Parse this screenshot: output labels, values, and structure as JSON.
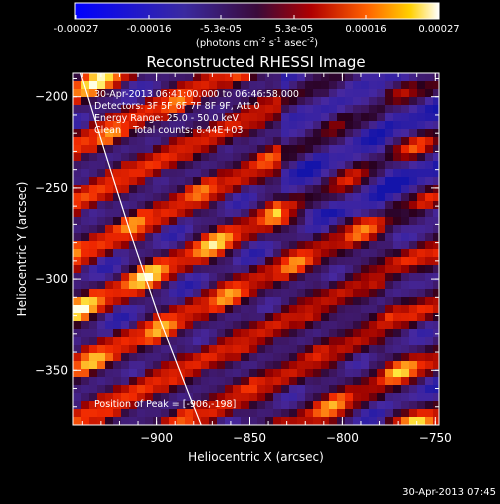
{
  "chart_data": {
    "type": "heatmap",
    "title": "Reconstructed RHESSI Image",
    "xlabel": "Heliocentric X (arcsec)",
    "ylabel": "Heliocentric Y (arcsec)",
    "xlim": [
      -945,
      -748
    ],
    "ylim": [
      -380,
      -187
    ],
    "xticks": [
      -900,
      -850,
      -800,
      -750
    ],
    "yticks": [
      -200,
      -250,
      -300,
      -350
    ],
    "colorbar": {
      "ticks": [
        "-0.00027",
        "-0.00016",
        "-5.3e-05",
        "5.3e-05",
        "0.00016",
        "0.00027"
      ],
      "unit_html": "(photons cm<tspan dy=\"-4\" font-size=\"7\">-2</tspan><tspan dy=\"4\"> s</tspan><tspan dy=\"-4\" font-size=\"7\">-1</tspan><tspan dy=\"4\"> asec</tspan><tspan dy=\"-4\" font-size=\"7\">-2</tspan><tspan dy=\"4\">)</tspan>",
      "vmin": -0.00027,
      "vmax": 0.00027
    },
    "annotations": {
      "time_range": "30-Apr-2013 06:41:00.000 to 06:46:58.000",
      "detectors": "Detectors: 3F 5F 6F 7F 8F 9F, Att 0",
      "energy": "Energy Range: 25.0 - 50.0 keV",
      "clean": "Clean    Total counts: 8.44E+03",
      "peak": "Position of Peak = [-906,-198]"
    },
    "limb_curve": [
      [
        -941,
        -187
      ],
      [
        -928,
        -230
      ],
      [
        -914,
        -275
      ],
      [
        -899,
        -320
      ],
      [
        -883,
        -362
      ],
      [
        -876,
        -380
      ]
    ]
  },
  "footer": {
    "timestamp": "30-Apr-2013 07:45"
  }
}
